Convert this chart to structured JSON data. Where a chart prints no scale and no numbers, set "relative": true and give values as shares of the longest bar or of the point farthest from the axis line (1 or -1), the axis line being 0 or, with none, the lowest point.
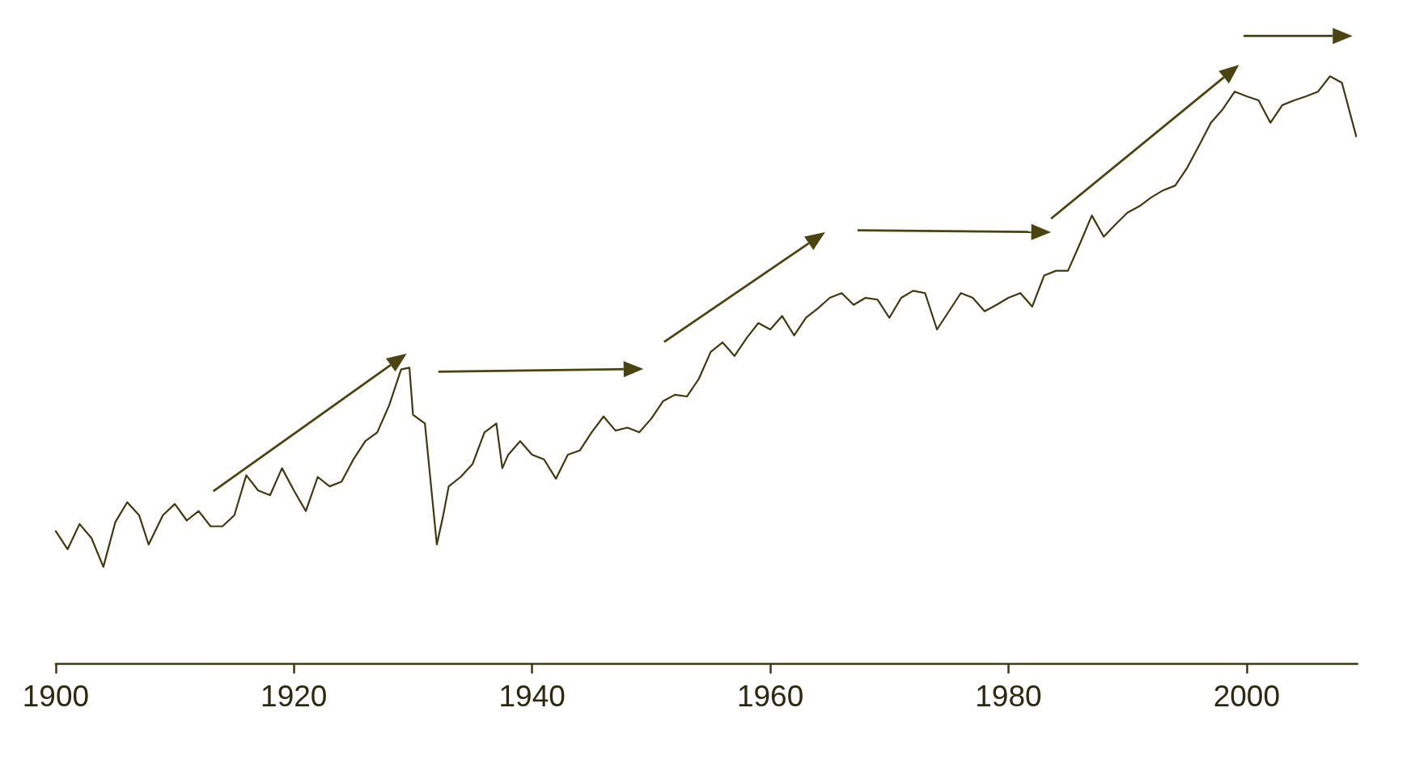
{
  "chart_data": {
    "type": "line",
    "relative": true,
    "marker": "none",
    "line_style": "solid",
    "grid": false,
    "xlim": [
      1900,
      2009.3
    ],
    "xticks": [
      1900,
      1920,
      1940,
      1960,
      1980,
      2000
    ],
    "x": [
      1900,
      1901,
      1902,
      1903,
      1904,
      1905,
      1906,
      1907,
      1907.8,
      1909,
      1910,
      1911,
      1912,
      1913,
      1914,
      1915,
      1916,
      1917,
      1918,
      1919,
      1920,
      1921,
      1922,
      1923,
      1924,
      1925,
      1926,
      1927,
      1928,
      1929,
      1929.7,
      1930,
      1931,
      1932,
      1932.5,
      1933,
      1934,
      1935,
      1936,
      1937,
      1937.5,
      1938,
      1939,
      1940,
      1941,
      1942,
      1943,
      1944,
      1945,
      1946,
      1947,
      1948,
      1949,
      1950,
      1951,
      1952,
      1953,
      1954,
      1955,
      1956,
      1957,
      1958,
      1959,
      1960,
      1961,
      1962,
      1963,
      1964,
      1965,
      1966,
      1967,
      1968,
      1969,
      1970,
      1971,
      1972,
      1973,
      1974,
      1975,
      1976,
      1977,
      1978,
      1979,
      1980,
      1981,
      1982,
      1983,
      1984,
      1985,
      1986,
      1987,
      1988,
      1989,
      1990,
      1991,
      1992,
      1993,
      1994,
      1995,
      1996,
      1997,
      1998,
      1999,
      2000,
      2001,
      2002,
      2003,
      2004,
      2005,
      2006,
      2007,
      2008,
      2009.2
    ],
    "series": [
      {
        "color": "#3d3a12",
        "values": [
          0.226,
          0.195,
          0.238,
          0.214,
          0.165,
          0.241,
          0.275,
          0.253,
          0.203,
          0.253,
          0.272,
          0.244,
          0.26,
          0.234,
          0.234,
          0.253,
          0.321,
          0.295,
          0.287,
          0.333,
          0.295,
          0.26,
          0.318,
          0.302,
          0.31,
          0.348,
          0.379,
          0.394,
          0.44,
          0.501,
          0.504,
          0.424,
          0.409,
          0.203,
          0.249,
          0.302,
          0.318,
          0.34,
          0.394,
          0.409,
          0.333,
          0.356,
          0.379,
          0.356,
          0.348,
          0.315,
          0.356,
          0.363,
          0.394,
          0.421,
          0.397,
          0.402,
          0.394,
          0.417,
          0.447,
          0.458,
          0.455,
          0.485,
          0.531,
          0.547,
          0.524,
          0.554,
          0.58,
          0.569,
          0.592,
          0.559,
          0.589,
          0.605,
          0.623,
          0.631,
          0.611,
          0.623,
          0.62,
          0.589,
          0.623,
          0.635,
          0.631,
          0.569,
          0.6,
          0.631,
          0.623,
          0.6,
          0.611,
          0.623,
          0.631,
          0.608,
          0.661,
          0.669,
          0.669,
          0.715,
          0.763,
          0.727,
          0.748,
          0.768,
          0.779,
          0.794,
          0.806,
          0.814,
          0.844,
          0.882,
          0.921,
          0.944,
          0.974,
          0.966,
          0.959,
          0.921,
          0.951,
          0.959,
          0.966,
          0.974,
          1,
          0.989,
          0.898
        ]
      }
    ]
  }
}
